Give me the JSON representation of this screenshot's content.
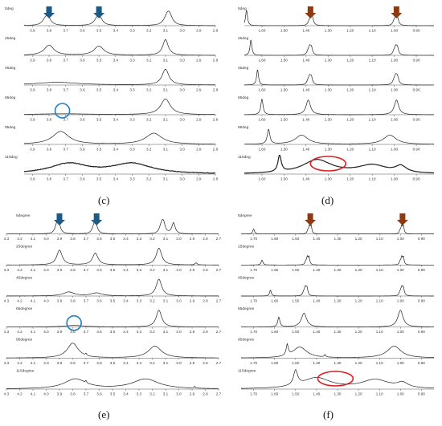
{
  "chart_data": [
    {
      "type": "line",
      "panel": "c",
      "reversed_x": true,
      "xlim": [
        3.95,
        2.8
      ],
      "ticks": [
        "3.9",
        "3.8",
        "3.7",
        "3.6",
        "3.5",
        "3.4",
        "3.3",
        "3.2",
        "3.1",
        "3.0",
        "2.9",
        "2.8"
      ],
      "arrows": [
        3.8,
        3.5
      ],
      "arrow_color": "#1f5a85",
      "circle": {
        "trace": 3,
        "x": 3.72,
        "color": "#1f7fc4"
      },
      "series": [
        {
          "name": "5deg",
          "peaks": [
            {
              "x": 3.81,
              "h": 0.6,
              "w": 0.02,
              "split": 0.012
            },
            {
              "x": 3.5,
              "h": 0.6,
              "w": 0.02,
              "split": 0.012
            },
            {
              "x": 3.08,
              "h": 0.85,
              "w": 0.02,
              "split": 0.012
            }
          ]
        },
        {
          "name": "25deg",
          "peaks": [
            {
              "x": 3.8,
              "h": 0.55,
              "w": 0.035
            },
            {
              "x": 3.5,
              "h": 0.5,
              "w": 0.035
            },
            {
              "x": 3.1,
              "h": 0.85,
              "w": 0.02
            }
          ]
        },
        {
          "name": "45deg",
          "peaks": [
            {
              "x": 3.75,
              "h": 0.15,
              "w": 0.15
            },
            {
              "x": 3.1,
              "h": 0.85,
              "w": 0.025
            }
          ]
        },
        {
          "name": "65deg",
          "peaks": [
            {
              "x": 3.72,
              "h": 0.05,
              "w": 0.2
            },
            {
              "x": 3.1,
              "h": 0.85,
              "w": 0.035
            }
          ]
        },
        {
          "name": "95deg",
          "peaks": [
            {
              "x": 3.73,
              "h": 0.7,
              "w": 0.06
            },
            {
              "x": 3.17,
              "h": 0.6,
              "w": 0.06
            }
          ]
        },
        {
          "name": "115deg",
          "peaks": [
            {
              "x": 3.68,
              "h": 0.55,
              "w": 0.14
            },
            {
              "x": 3.3,
              "h": 0.55,
              "w": 0.14
            }
          ],
          "noise": 0.03
        }
      ]
    },
    {
      "type": "line",
      "panel": "d",
      "reversed_x": true,
      "xlim": [
        1.68,
        0.82
      ],
      "ticks": [
        "1.60",
        "1.50",
        "1.40",
        "1.30",
        "1.20",
        "1.10",
        "1.00",
        "0.90"
      ],
      "arrows": [
        1.38,
        0.99
      ],
      "arrow_color": "#8b3a12",
      "ellipse": {
        "trace": 5,
        "x": 1.3,
        "color": "#d92020"
      },
      "series": [
        {
          "name": "5deg",
          "peaks": [
            {
              "x": 1.67,
              "h": 0.85,
              "w": 0.005
            },
            {
              "x": 1.375,
              "h": 0.8,
              "w": 0.006,
              "split": 0.008
            },
            {
              "x": 0.99,
              "h": 0.85,
              "w": 0.006,
              "split": 0.008
            }
          ]
        },
        {
          "name": "25deg",
          "peaks": [
            {
              "x": 1.65,
              "h": 0.85,
              "w": 0.005
            },
            {
              "x": 1.38,
              "h": 0.85,
              "w": 0.006,
              "split": 0.008
            },
            {
              "x": 0.99,
              "h": 0.85,
              "w": 0.006,
              "split": 0.008
            }
          ]
        },
        {
          "name": "45deg",
          "peaks": [
            {
              "x": 1.62,
              "h": 0.85,
              "w": 0.005
            },
            {
              "x": 1.38,
              "h": 0.85,
              "w": 0.006,
              "split": 0.008
            },
            {
              "x": 0.99,
              "h": 0.85,
              "w": 0.007,
              "split": 0.008
            }
          ]
        },
        {
          "name": "65deg",
          "peaks": [
            {
              "x": 1.6,
              "h": 0.85,
              "w": 0.006
            },
            {
              "x": 1.39,
              "h": 0.8,
              "w": 0.012
            },
            {
              "x": 0.99,
              "h": 0.8,
              "w": 0.012
            }
          ]
        },
        {
          "name": "95deg",
          "peaks": [
            {
              "x": 1.57,
              "h": 0.8,
              "w": 0.007
            },
            {
              "x": 1.42,
              "h": 0.5,
              "w": 0.035
            },
            {
              "x": 1.02,
              "h": 0.5,
              "w": 0.035
            }
          ]
        },
        {
          "name": "115deg",
          "peaks": [
            {
              "x": 1.52,
              "h": 0.9,
              "w": 0.009
            },
            {
              "x": 1.35,
              "h": 0.75,
              "w": 0.08
            },
            {
              "x": 1.1,
              "h": 0.45,
              "w": 0.08
            },
            {
              "x": 0.97,
              "h": 0.35,
              "w": 0.03
            }
          ],
          "noise": 0.012
        }
      ]
    },
    {
      "type": "line",
      "panel": "e",
      "reversed_x": true,
      "xlim": [
        4.3,
        2.7
      ],
      "ticks": [
        "4.3",
        "4.2",
        "4.1",
        "4.0",
        "3.9",
        "3.8",
        "3.7",
        "3.6",
        "3.5",
        "3.4",
        "3.3",
        "3.2",
        "3.1",
        "3.0",
        "2.9",
        "2.8",
        "2.7"
      ],
      "arrows": [
        3.9,
        3.62
      ],
      "arrow_color": "#1f5a85",
      "circle": {
        "trace": 3,
        "x": 3.79,
        "color": "#1f7fc4"
      },
      "series": [
        {
          "name": "5degree",
          "peaks": [
            {
              "x": 3.91,
              "h": 0.8,
              "w": 0.015,
              "split": 0.01
            },
            {
              "x": 3.63,
              "h": 0.7,
              "w": 0.015,
              "split": 0.01
            },
            {
              "x": 3.12,
              "h": 0.85,
              "w": 0.015,
              "split": 0.012
            },
            {
              "x": 3.04,
              "h": 0.55,
              "w": 0.015
            }
          ]
        },
        {
          "name": "25degree",
          "peaks": [
            {
              "x": 3.9,
              "h": 0.75,
              "w": 0.025
            },
            {
              "x": 3.63,
              "h": 0.6,
              "w": 0.025
            },
            {
              "x": 3.15,
              "h": 0.85,
              "w": 0.025
            },
            {
              "x": 2.87,
              "h": 0.1,
              "w": 0.01
            }
          ]
        },
        {
          "name": "45degree",
          "peaks": [
            {
              "x": 3.83,
              "h": 0.2,
              "w": 0.05
            },
            {
              "x": 3.62,
              "h": 0.15,
              "w": 0.05
            },
            {
              "x": 3.15,
              "h": 0.85,
              "w": 0.025
            }
          ]
        },
        {
          "name": "65degree",
          "peaks": [
            {
              "x": 3.79,
              "h": 0.08,
              "w": 0.1
            },
            {
              "x": 3.15,
              "h": 0.85,
              "w": 0.025
            }
          ]
        },
        {
          "name": "95degree",
          "peaks": [
            {
              "x": 3.8,
              "h": 0.75,
              "w": 0.05
            },
            {
              "x": 3.18,
              "h": 0.6,
              "w": 0.06
            },
            {
              "x": 3.7,
              "h": 0.1,
              "w": 0.005
            }
          ]
        },
        {
          "name": "115degree",
          "peaks": [
            {
              "x": 3.78,
              "h": 0.5,
              "w": 0.1
            },
            {
              "x": 3.25,
              "h": 0.5,
              "w": 0.12
            },
            {
              "x": 3.7,
              "h": 0.12,
              "w": 0.004
            },
            {
              "x": 2.88,
              "h": 0.1,
              "w": 0.004
            }
          ]
        }
      ]
    },
    {
      "type": "line",
      "panel": "f",
      "reversed_x": true,
      "xlim": [
        1.76,
        0.84
      ],
      "ticks": [
        "1.70",
        "1.60",
        "1.50",
        "1.40",
        "1.30",
        "1.20",
        "1.10",
        "1.00",
        "0.90"
      ],
      "arrows": [
        1.43,
        0.99
      ],
      "arrow_color": "#8b3a12",
      "ellipse": {
        "trace": 5,
        "x": 1.31,
        "color": "#d92020"
      },
      "series": [
        {
          "name": "5degree",
          "peaks": [
            {
              "x": 1.7,
              "h": 0.25,
              "w": 0.005
            },
            {
              "x": 1.43,
              "h": 0.85,
              "w": 0.004,
              "split": 0.008
            },
            {
              "x": 0.99,
              "h": 0.85,
              "w": 0.004,
              "split": 0.008
            }
          ]
        },
        {
          "name": "25degree",
          "peaks": [
            {
              "x": 1.66,
              "h": 0.25,
              "w": 0.005
            },
            {
              "x": 1.44,
              "h": 0.85,
              "w": 0.004,
              "split": 0.008
            },
            {
              "x": 0.99,
              "h": 0.85,
              "w": 0.004,
              "split": 0.008
            }
          ]
        },
        {
          "name": "45degree",
          "peaks": [
            {
              "x": 1.62,
              "h": 0.3,
              "w": 0.005
            },
            {
              "x": 1.45,
              "h": 0.85,
              "w": 0.005,
              "split": 0.008
            },
            {
              "x": 0.99,
              "h": 0.85,
              "w": 0.005,
              "split": 0.008
            }
          ]
        },
        {
          "name": "65degree",
          "peaks": [
            {
              "x": 1.58,
              "h": 0.5,
              "w": 0.006
            },
            {
              "x": 1.46,
              "h": 0.7,
              "w": 0.015
            },
            {
              "x": 1.0,
              "h": 0.85,
              "w": 0.015
            }
          ]
        },
        {
          "name": "95degree",
          "peaks": [
            {
              "x": 1.54,
              "h": 0.55,
              "w": 0.006
            },
            {
              "x": 1.48,
              "h": 0.55,
              "w": 0.04
            },
            {
              "x": 1.03,
              "h": 0.6,
              "w": 0.04
            },
            {
              "x": 1.36,
              "h": 0.12,
              "w": 0.004
            }
          ]
        },
        {
          "name": "115degree",
          "peaks": [
            {
              "x": 1.5,
              "h": 0.75,
              "w": 0.012
            },
            {
              "x": 1.4,
              "h": 0.55,
              "w": 0.08
            },
            {
              "x": 1.12,
              "h": 0.45,
              "w": 0.08
            },
            {
              "x": 0.99,
              "h": 0.25,
              "w": 0.03
            }
          ]
        }
      ]
    }
  ],
  "panel_labels": {
    "c": "(c)",
    "d": "(d)",
    "e": "(e)",
    "f": "(f)"
  }
}
